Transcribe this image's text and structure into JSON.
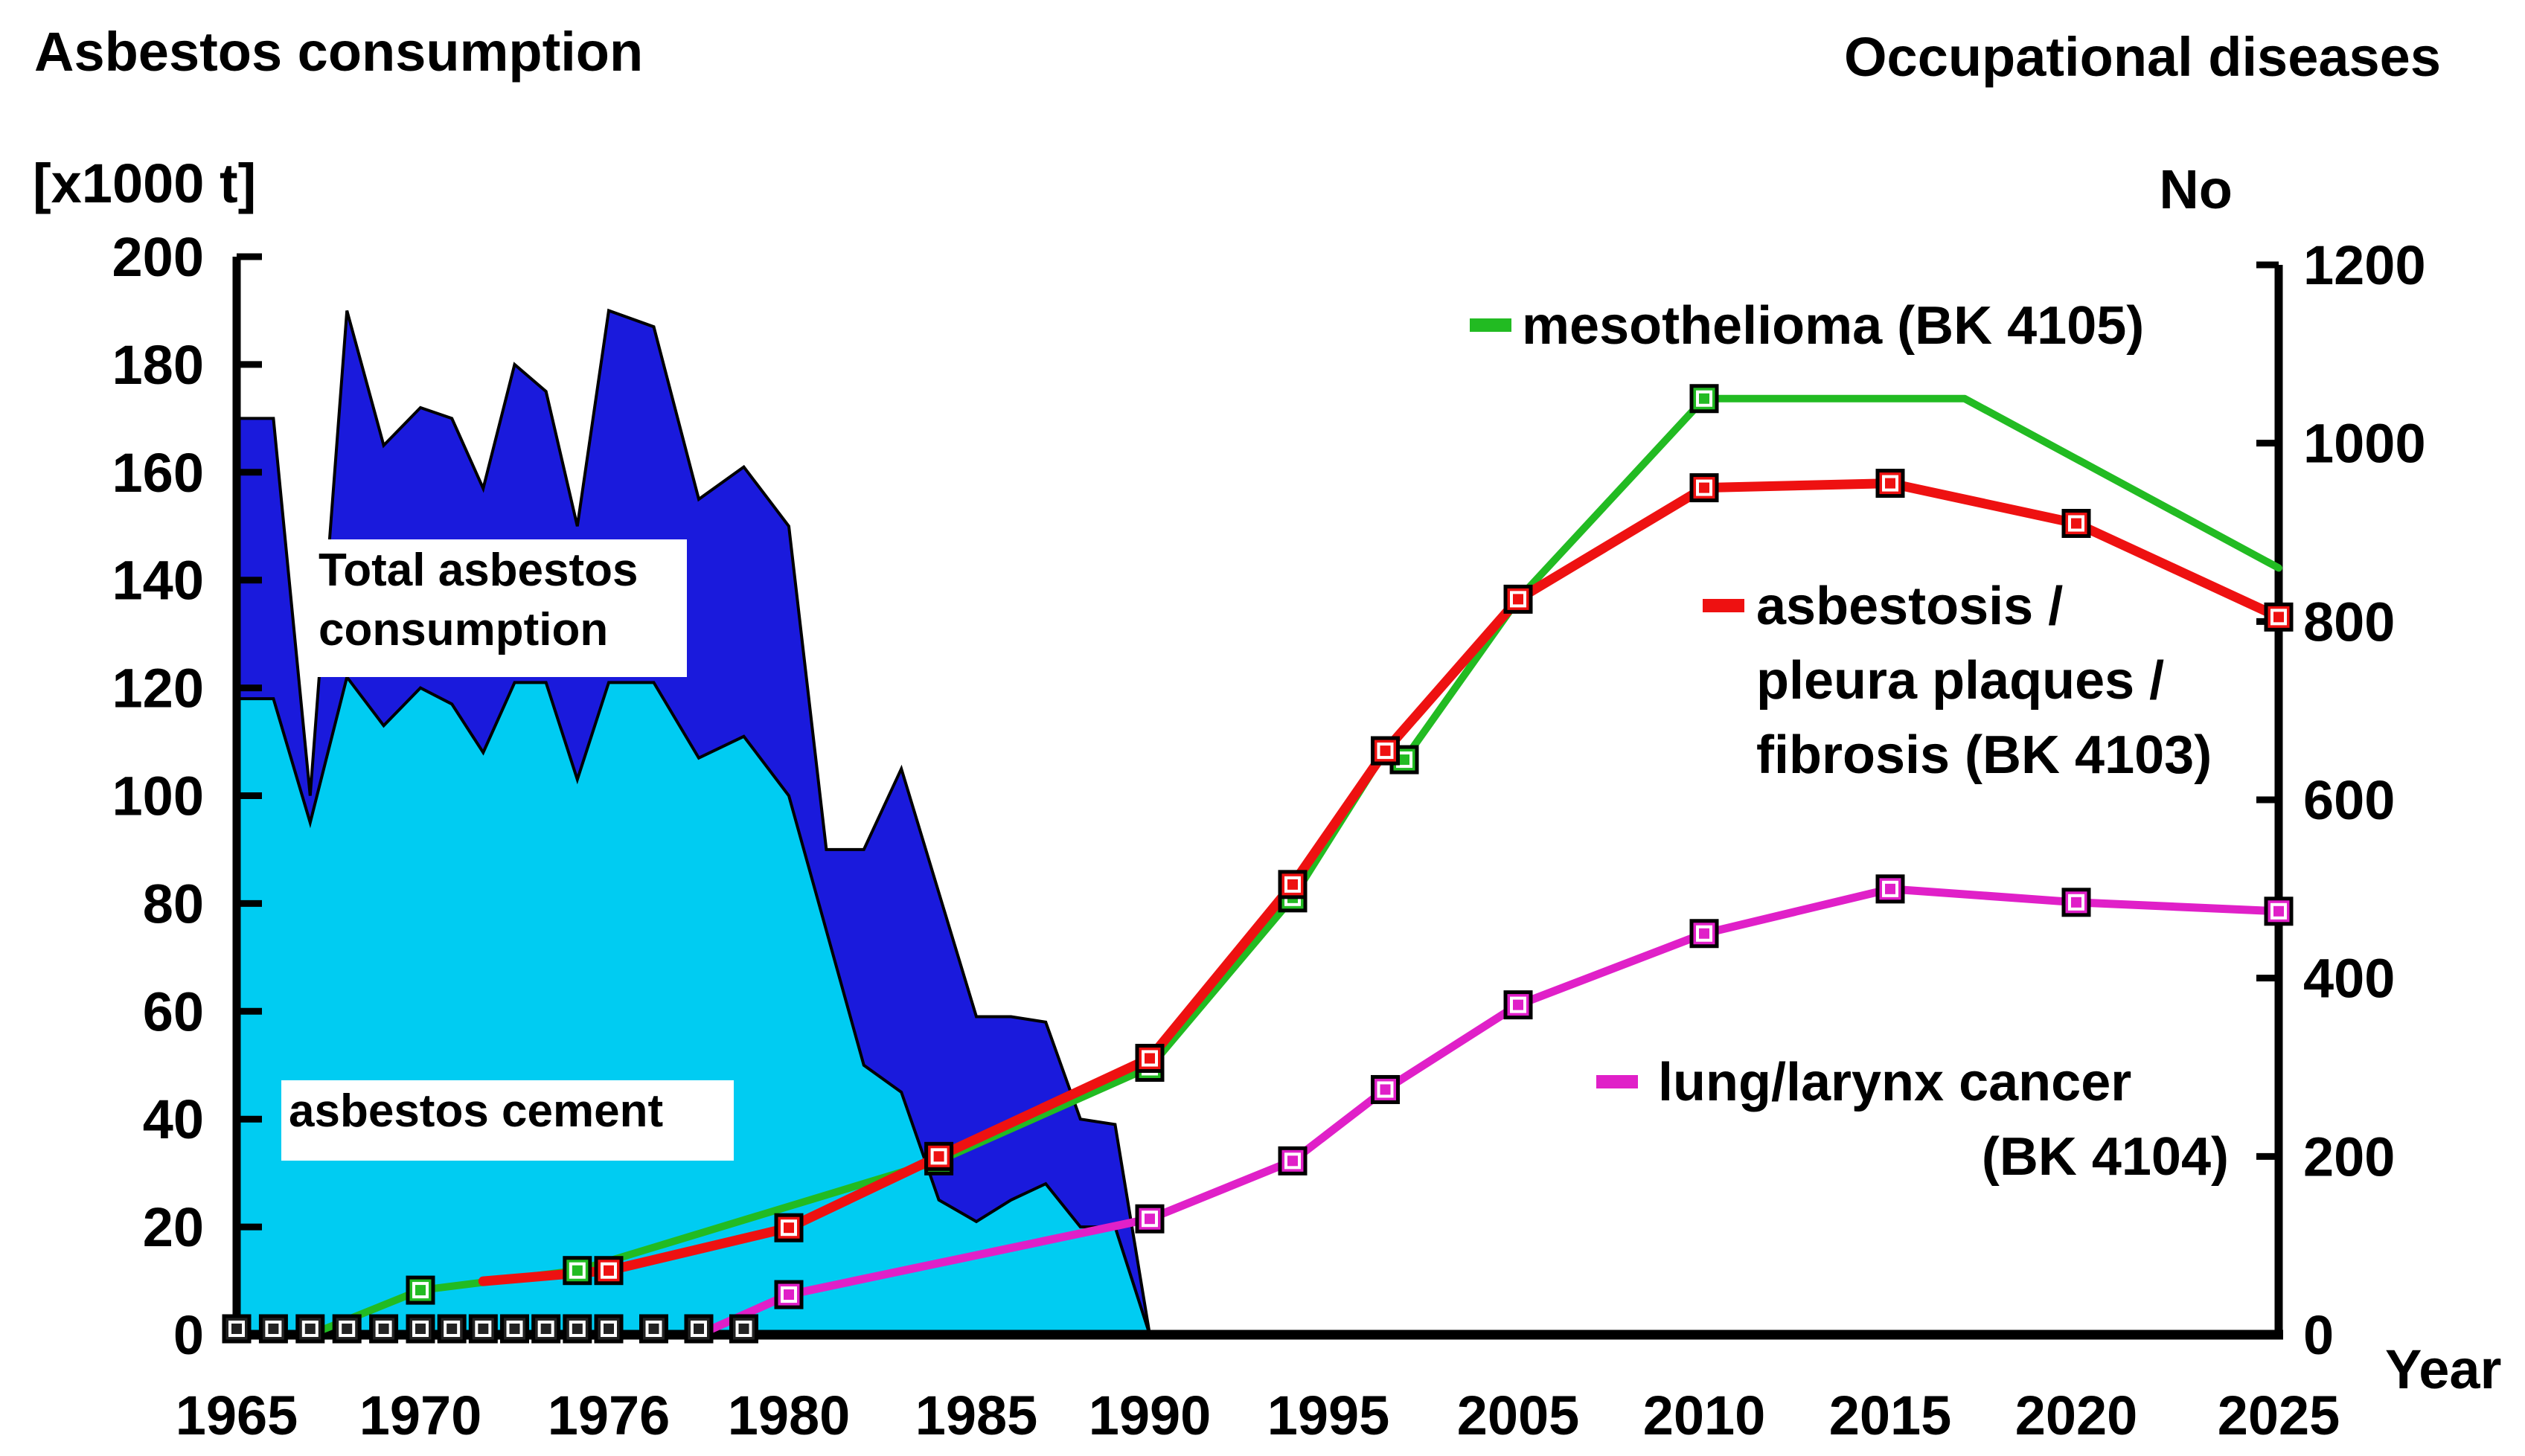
{
  "chart_data": {
    "type": "area+line",
    "left_title": "Asbestos consumption",
    "left_unit": "[x1000 t]",
    "right_title": "Occupational diseases",
    "right_unit": "No",
    "x_axis_label": "Year",
    "x_tick_labels": [
      "1965",
      "1970",
      "1976",
      "1980",
      "1985",
      "1990",
      "1995",
      "2005",
      "2010",
      "2015",
      "2020",
      "2025"
    ],
    "y_left_ticks": [
      0,
      20,
      40,
      60,
      80,
      100,
      120,
      140,
      160,
      180,
      200
    ],
    "y_right_ticks": [
      0,
      200,
      400,
      600,
      800,
      1000,
      1200
    ],
    "ylim_left": [
      0,
      200
    ],
    "ylim_right": [
      0,
      1200
    ],
    "legend_position": "inside-right",
    "area_series": [
      {
        "label": "Total asbestos consumption",
        "color": "#1a1adc",
        "points": [
          [
            1965,
            170
          ],
          [
            1966,
            170
          ],
          [
            1967,
            100
          ],
          [
            1968,
            190
          ],
          [
            1969,
            165
          ],
          [
            1970,
            172
          ],
          [
            1971,
            170
          ],
          [
            1972,
            157
          ],
          [
            1973,
            180
          ],
          [
            1974,
            175
          ],
          [
            1975,
            150
          ],
          [
            1976,
            190
          ],
          [
            1977,
            187
          ],
          [
            1978,
            155
          ],
          [
            1979,
            161
          ],
          [
            1980,
            150
          ],
          [
            1981,
            90
          ],
          [
            1982,
            90
          ],
          [
            1983,
            105
          ],
          [
            1984,
            82
          ],
          [
            1985,
            59
          ],
          [
            1986,
            59
          ],
          [
            1987,
            58
          ],
          [
            1988,
            40
          ],
          [
            1989,
            39
          ],
          [
            1990,
            0
          ]
        ]
      },
      {
        "label": "asbestos cement",
        "color": "#00ccf2",
        "points": [
          [
            1965,
            118
          ],
          [
            1966,
            118
          ],
          [
            1967,
            95
          ],
          [
            1968,
            122
          ],
          [
            1969,
            113
          ],
          [
            1970,
            120
          ],
          [
            1971,
            117
          ],
          [
            1972,
            108
          ],
          [
            1973,
            121
          ],
          [
            1974,
            121
          ],
          [
            1975,
            103
          ],
          [
            1976,
            121
          ],
          [
            1977,
            121
          ],
          [
            1978,
            107
          ],
          [
            1979,
            111
          ],
          [
            1980,
            100
          ],
          [
            1981,
            75
          ],
          [
            1982,
            50
          ],
          [
            1983,
            45
          ],
          [
            1984,
            25
          ],
          [
            1985,
            21
          ],
          [
            1986,
            25
          ],
          [
            1987,
            28
          ],
          [
            1988,
            20
          ],
          [
            1989,
            20
          ],
          [
            1990,
            0
          ]
        ]
      }
    ],
    "line_series": [
      {
        "label": "mesothelioma (BK 4105)",
        "color": "#22bb22",
        "points": [
          [
            1967,
            0
          ],
          [
            1970,
            50
          ],
          [
            1975,
            72
          ],
          [
            1984,
            195
          ],
          [
            1990,
            300
          ],
          [
            1994,
            490
          ],
          [
            1998,
            655
          ],
          [
            1999,
            645
          ],
          [
            2005,
            825
          ],
          [
            2010,
            1050
          ],
          [
            2015,
            1050
          ],
          [
            2017,
            1050
          ],
          [
            2025,
            860
          ]
        ]
      },
      {
        "label": "asbestosis / pleura plaques / fibrosis (BK 4103)",
        "color": "#ee1111",
        "points": [
          [
            1972,
            60
          ],
          [
            1976,
            72
          ],
          [
            1980,
            120
          ],
          [
            1984,
            200
          ],
          [
            1990,
            310
          ],
          [
            1994,
            505
          ],
          [
            1998,
            655
          ],
          [
            2005,
            825
          ],
          [
            2010,
            950
          ],
          [
            2015,
            955
          ],
          [
            2020,
            910
          ],
          [
            2025,
            805
          ]
        ]
      },
      {
        "label": "lung/larynx cancer (BK 4104)",
        "color": "#e020c8",
        "points": [
          [
            1978,
            0
          ],
          [
            1980,
            45
          ],
          [
            1990,
            130
          ],
          [
            1994,
            195
          ],
          [
            1998,
            275
          ],
          [
            2005,
            370
          ],
          [
            2010,
            450
          ],
          [
            2015,
            500
          ],
          [
            2020,
            485
          ],
          [
            2025,
            475
          ]
        ]
      }
    ]
  }
}
